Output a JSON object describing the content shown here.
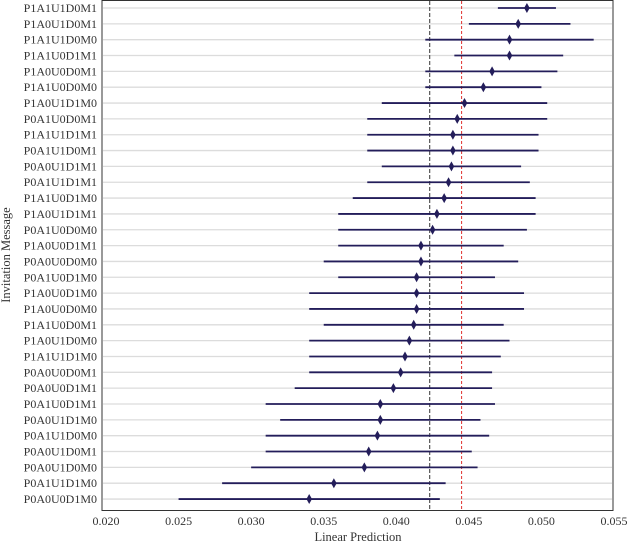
{
  "chart_data": {
    "type": "scatter",
    "subtype": "forest-plot",
    "title": "",
    "xlabel": "Linear Prediction",
    "ylabel": "Invitation Message",
    "xlim": [
      0.02,
      0.055
    ],
    "xticks": [
      "0.020",
      "0.025",
      "0.030",
      "0.035",
      "0.040",
      "0.045",
      "0.050",
      "0.055"
    ],
    "grid": "horizontal",
    "colors": {
      "point": "#231d5a",
      "ci": "#231d5a",
      "grid": "#dcdcdc",
      "ref_mean": "#555555",
      "ref_red": "#e0312f"
    },
    "reference_lines": [
      {
        "name": "gray-dashed",
        "value": 0.0423
      },
      {
        "name": "red-dashed",
        "value": 0.0445
      }
    ],
    "rows": [
      {
        "label": "P1A1U1D0M1",
        "estimate": 0.049,
        "lo": 0.047,
        "hi": 0.051
      },
      {
        "label": "P1A0U1D0M1",
        "estimate": 0.0484,
        "lo": 0.045,
        "hi": 0.052
      },
      {
        "label": "P1A1U1D0M0",
        "estimate": 0.0478,
        "lo": 0.042,
        "hi": 0.0536
      },
      {
        "label": "P1A1U0D1M1",
        "estimate": 0.0478,
        "lo": 0.044,
        "hi": 0.0515
      },
      {
        "label": "P1A0U0D0M1",
        "estimate": 0.0466,
        "lo": 0.042,
        "hi": 0.0511
      },
      {
        "label": "P1A1U0D0M0",
        "estimate": 0.046,
        "lo": 0.042,
        "hi": 0.05
      },
      {
        "label": "P1A0U1D1M0",
        "estimate": 0.0447,
        "lo": 0.039,
        "hi": 0.0504
      },
      {
        "label": "P0A1U0D0M1",
        "estimate": 0.0442,
        "lo": 0.038,
        "hi": 0.0504
      },
      {
        "label": "P1A1U1D1M1",
        "estimate": 0.0439,
        "lo": 0.038,
        "hi": 0.0498
      },
      {
        "label": "P0A1U1D0M1",
        "estimate": 0.0439,
        "lo": 0.038,
        "hi": 0.0498
      },
      {
        "label": "P0A0U1D1M1",
        "estimate": 0.0438,
        "lo": 0.039,
        "hi": 0.0486
      },
      {
        "label": "P0A1U1D1M1",
        "estimate": 0.0436,
        "lo": 0.038,
        "hi": 0.0492
      },
      {
        "label": "P1A1U0D1M0",
        "estimate": 0.0433,
        "lo": 0.037,
        "hi": 0.0496
      },
      {
        "label": "P1A0U1D1M1",
        "estimate": 0.0428,
        "lo": 0.036,
        "hi": 0.0496
      },
      {
        "label": "P0A1U0D0M0",
        "estimate": 0.0425,
        "lo": 0.036,
        "hi": 0.049
      },
      {
        "label": "P1A0U0D1M1",
        "estimate": 0.0417,
        "lo": 0.036,
        "hi": 0.0474
      },
      {
        "label": "P0A0U0D0M0",
        "estimate": 0.0417,
        "lo": 0.035,
        "hi": 0.0484
      },
      {
        "label": "P0A1U0D1M0",
        "estimate": 0.0414,
        "lo": 0.036,
        "hi": 0.0468
      },
      {
        "label": "P1A0U0D1M0",
        "estimate": 0.0414,
        "lo": 0.034,
        "hi": 0.0488
      },
      {
        "label": "P1A0U0D0M0",
        "estimate": 0.0414,
        "lo": 0.034,
        "hi": 0.0488
      },
      {
        "label": "P1A1U0D0M1",
        "estimate": 0.0412,
        "lo": 0.035,
        "hi": 0.0474
      },
      {
        "label": "P1A0U1D0M0",
        "estimate": 0.0409,
        "lo": 0.034,
        "hi": 0.0478
      },
      {
        "label": "P1A1U1D1M0",
        "estimate": 0.0406,
        "lo": 0.034,
        "hi": 0.0472
      },
      {
        "label": "P0A0U0D0M1",
        "estimate": 0.0403,
        "lo": 0.034,
        "hi": 0.0466
      },
      {
        "label": "P0A0U0D1M1",
        "estimate": 0.0398,
        "lo": 0.033,
        "hi": 0.0466
      },
      {
        "label": "P0A1U0D1M1",
        "estimate": 0.0389,
        "lo": 0.031,
        "hi": 0.0468
      },
      {
        "label": "P0A0U1D1M0",
        "estimate": 0.0389,
        "lo": 0.032,
        "hi": 0.0458
      },
      {
        "label": "P0A1U1D0M0",
        "estimate": 0.0387,
        "lo": 0.031,
        "hi": 0.0464
      },
      {
        "label": "P0A0U1D0M1",
        "estimate": 0.0381,
        "lo": 0.031,
        "hi": 0.0452
      },
      {
        "label": "P0A0U1D0M0",
        "estimate": 0.0378,
        "lo": 0.03,
        "hi": 0.0456
      },
      {
        "label": "P0A1U1D1M0",
        "estimate": 0.0357,
        "lo": 0.028,
        "hi": 0.0434
      },
      {
        "label": "P0A0U0D1M0",
        "estimate": 0.034,
        "lo": 0.025,
        "hi": 0.043
      }
    ]
  }
}
